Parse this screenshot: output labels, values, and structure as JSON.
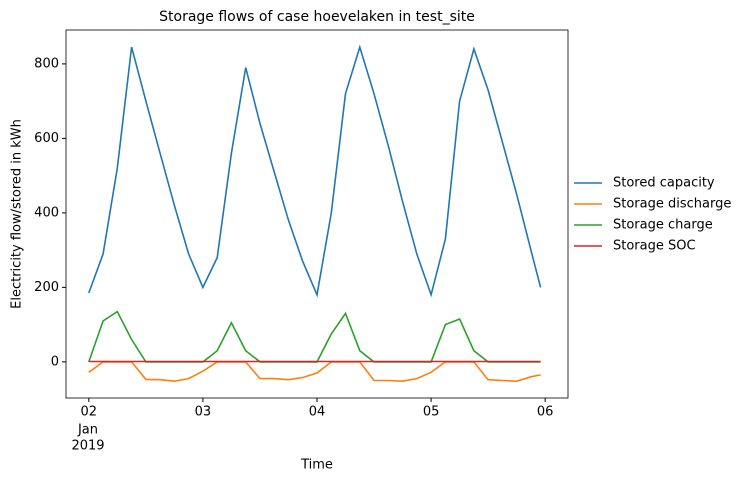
{
  "chart_data": {
    "type": "line",
    "title": "Storage flows of case hoevelaken in test_site",
    "x_label": "Time",
    "y_label": "Electricity flow/stored in kWh",
    "x": [
      2.0,
      2.125,
      2.25,
      2.375,
      2.5,
      2.625,
      2.75,
      2.875,
      3.0,
      3.125,
      3.25,
      3.375,
      3.5,
      3.625,
      3.75,
      3.875,
      4.0,
      4.125,
      4.25,
      4.375,
      4.5,
      4.625,
      4.75,
      4.875,
      5.0,
      5.125,
      5.25,
      5.375,
      5.5,
      5.625,
      5.75,
      5.875,
      5.96
    ],
    "series": [
      {
        "name": "Stored capacity",
        "color": "#1f77b4",
        "values": [
          185,
          290,
          520,
          845,
          700,
          560,
          420,
          290,
          200,
          280,
          560,
          790,
          640,
          510,
          380,
          270,
          180,
          400,
          720,
          845,
          720,
          580,
          430,
          290,
          180,
          330,
          700,
          840,
          730,
          590,
          450,
          300,
          200
        ]
      },
      {
        "name": "Storage discharge",
        "color": "#ff7f0e",
        "values": [
          -28,
          0,
          0,
          0,
          -47,
          -48,
          -52,
          -45,
          -25,
          0,
          0,
          0,
          -45,
          -45,
          -48,
          -42,
          -30,
          0,
          0,
          0,
          -50,
          -50,
          -52,
          -45,
          -28,
          0,
          0,
          0,
          -48,
          -50,
          -52,
          -40,
          -35
        ]
      },
      {
        "name": "Storage charge",
        "color": "#2ca02c",
        "values": [
          0,
          110,
          135,
          60,
          0,
          0,
          0,
          0,
          0,
          30,
          105,
          30,
          0,
          0,
          0,
          0,
          0,
          75,
          130,
          30,
          0,
          0,
          0,
          0,
          0,
          100,
          115,
          30,
          0,
          0,
          0,
          0,
          0
        ]
      },
      {
        "name": "Storage SOC",
        "color": "#d62728",
        "values": [
          1,
          1,
          1,
          1,
          1,
          1,
          1,
          1,
          1,
          1,
          1,
          1,
          1,
          1,
          1,
          1,
          1,
          1,
          1,
          1,
          1,
          1,
          1,
          1,
          1,
          1,
          1,
          1,
          1,
          1,
          1,
          1,
          1
        ]
      }
    ],
    "xlim": [
      1.8,
      6.2
    ],
    "xticks": [
      {
        "value": 2,
        "label": "02"
      },
      {
        "value": 3,
        "label": "03"
      },
      {
        "value": 4,
        "label": "04"
      },
      {
        "value": 5,
        "label": "05"
      },
      {
        "value": 6,
        "label": "06"
      }
    ],
    "xtick_sublabel": [
      "Jan",
      "2019"
    ],
    "ylim": [
      -97,
      891
    ],
    "yticks": [
      0,
      200,
      400,
      600,
      800
    ],
    "legend": "outside-right",
    "grid": false
  }
}
